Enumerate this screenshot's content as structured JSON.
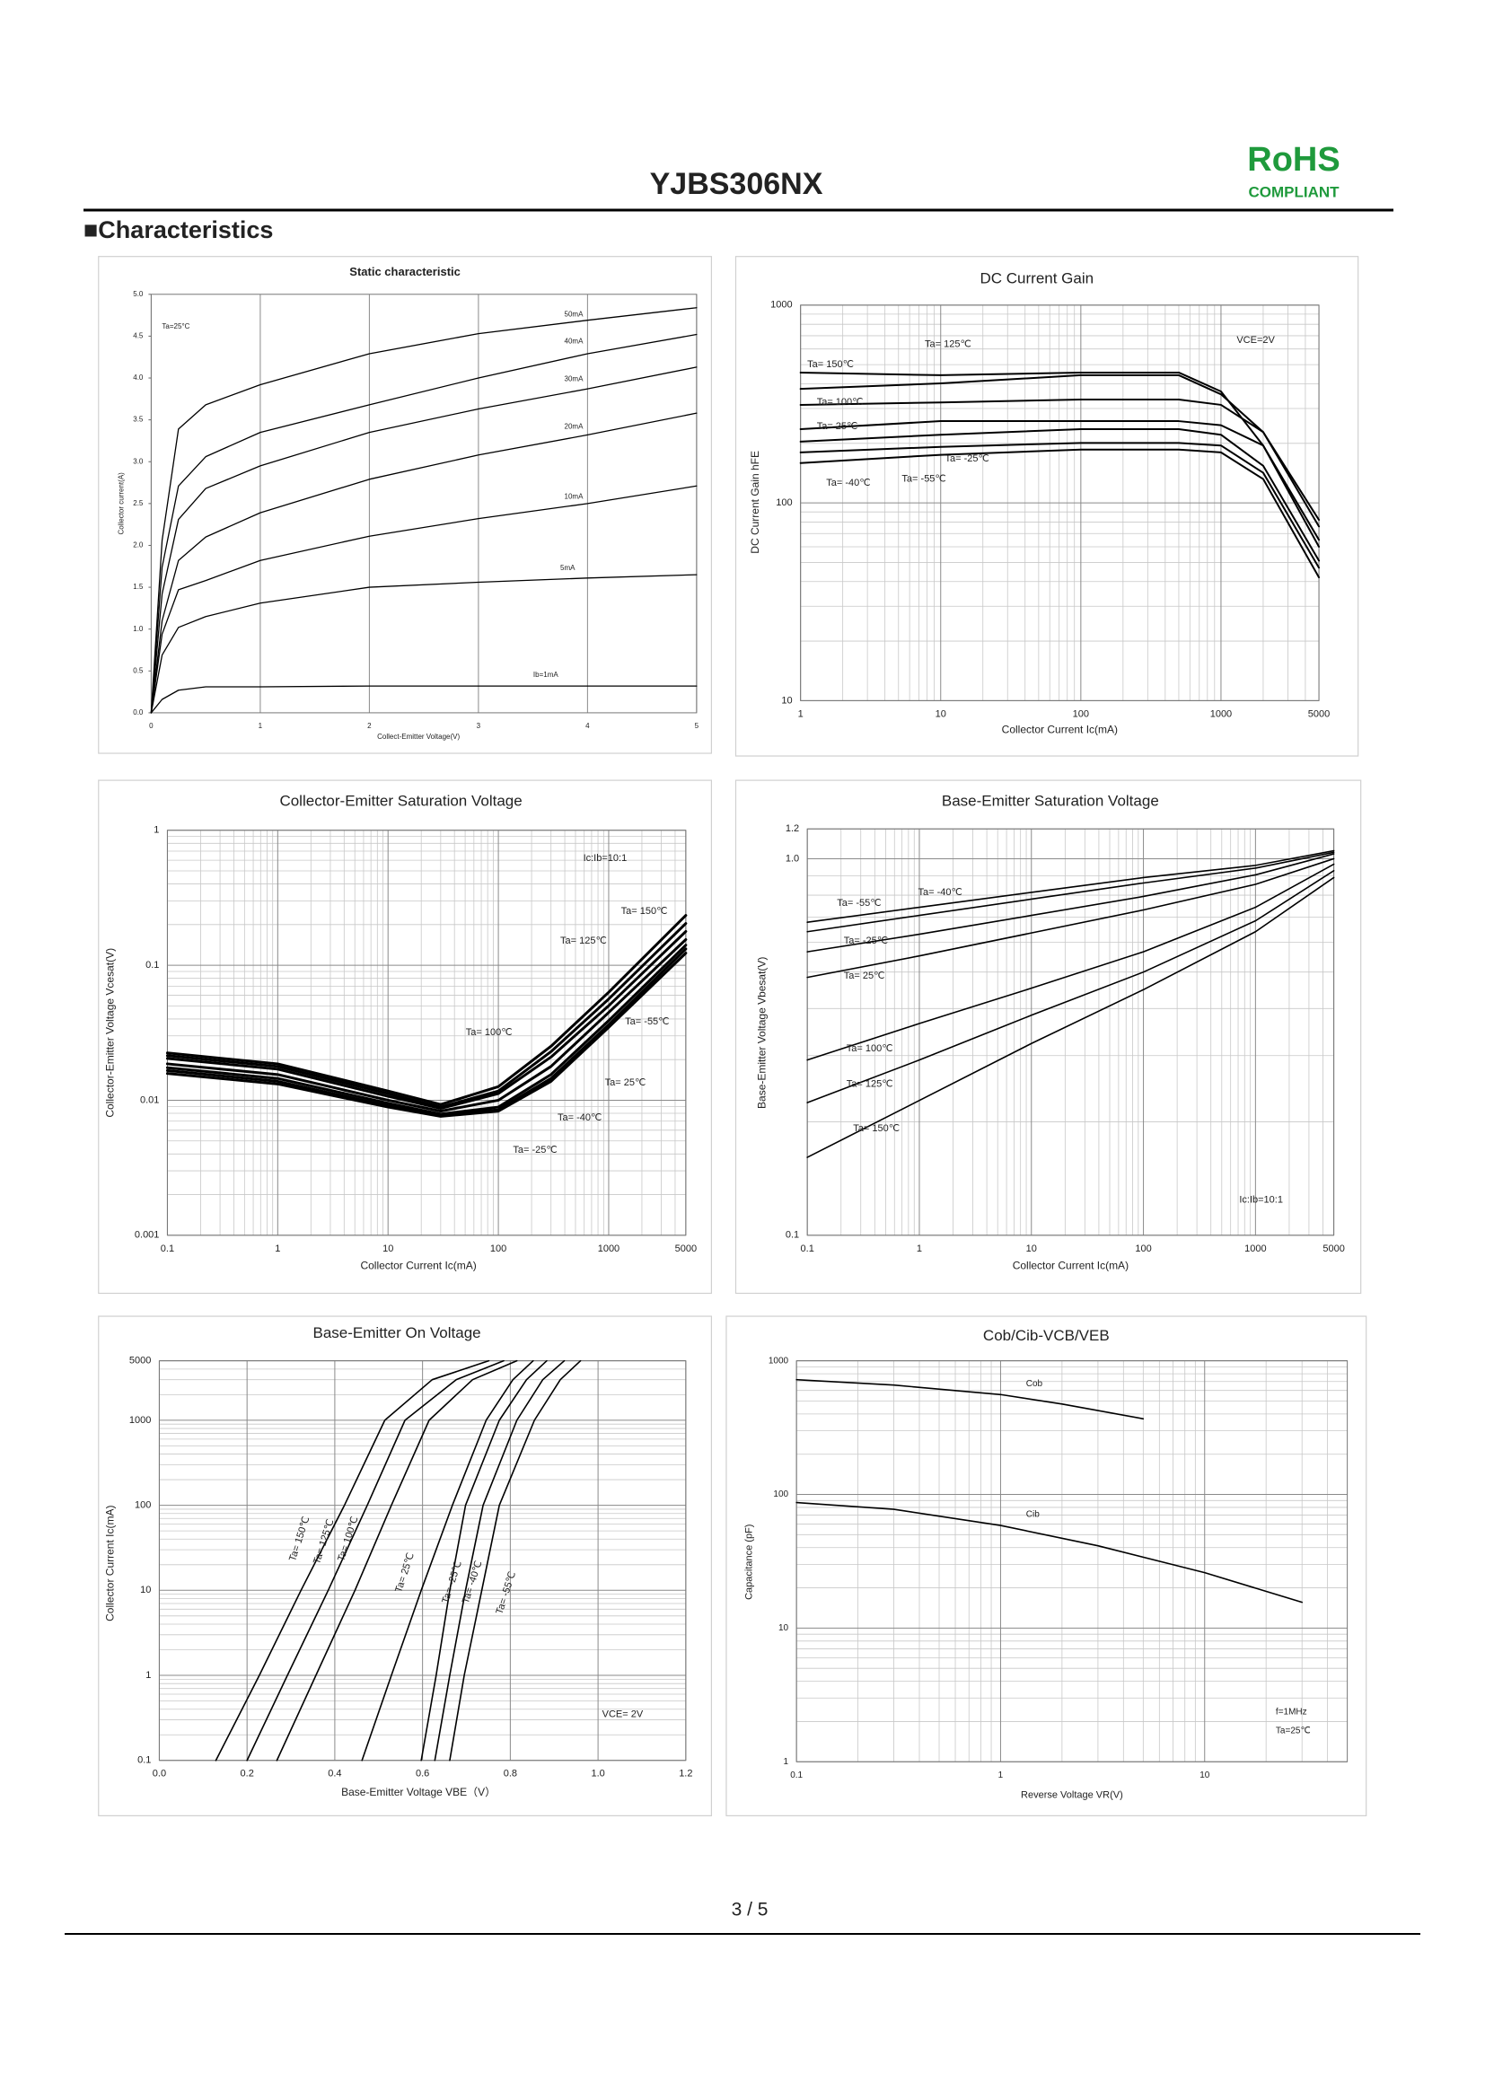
{
  "header": {
    "title": "YJBS306NX",
    "rohs": "RoHS",
    "compliant": "COMPLIANT"
  },
  "section": "■Characteristics",
  "footer": {
    "page": "3 / 5"
  },
  "chart_data": [
    {
      "type": "line",
      "title": "Static characteristic",
      "x_label": "Collect-Emitter Voltage(V)",
      "y_label": "Collector current(A)",
      "annotations": [
        "Ta=25°C"
      ],
      "color": "#000000",
      "xlog": false,
      "ylog": false,
      "grid": "x",
      "xlim": [
        0,
        5
      ],
      "ylim": [
        0,
        5
      ],
      "xticks": [
        0,
        1,
        2,
        3,
        4,
        5
      ],
      "yticks": [
        {
          "value": 0,
          "label": "0.0"
        },
        0.5,
        {
          "value": 1,
          "label": "1.0"
        },
        1.5,
        {
          "value": 2,
          "label": "2.0"
        },
        2.5,
        {
          "value": 3,
          "label": "3.0"
        },
        3.5,
        {
          "value": 4,
          "label": "4.0"
        },
        4.5,
        {
          "value": 5,
          "label": "5.0"
        }
      ],
      "x": [
        0,
        0.1,
        0.25,
        0.5,
        1,
        2,
        3,
        4,
        5
      ],
      "series": [
        {
          "name": "50mA",
          "values": [
            0,
            2.06,
            3.39,
            3.68,
            3.92,
            4.29,
            4.53,
            4.69,
            4.84
          ]
        },
        {
          "name": "40mA",
          "values": [
            0,
            1.74,
            2.71,
            3.06,
            3.35,
            3.68,
            4.0,
            4.29,
            4.52
          ]
        },
        {
          "name": "30mA",
          "values": [
            0,
            1.42,
            2.31,
            2.68,
            2.95,
            3.35,
            3.63,
            3.87,
            4.13
          ]
        },
        {
          "name": "20mA",
          "values": [
            0,
            1.1,
            1.82,
            2.1,
            2.39,
            2.79,
            3.08,
            3.32,
            3.58
          ]
        },
        {
          "name": "10mA",
          "values": [
            0,
            0.94,
            1.47,
            1.58,
            1.82,
            2.11,
            2.32,
            2.5,
            2.71
          ]
        },
        {
          "name": "5mA",
          "values": [
            0,
            0.69,
            1.02,
            1.15,
            1.31,
            1.5,
            1.56,
            1.61,
            1.65
          ]
        },
        {
          "name": "Ib=1mA",
          "values": [
            0,
            0.16,
            0.27,
            0.31,
            0.31,
            0.32,
            0.32,
            0.32,
            0.32
          ]
        }
      ]
    },
    {
      "type": "line",
      "title": "DC Current Gain",
      "x_label": "Collector Current   Ic(mA)",
      "y_label": "DC Current Gain   hFE",
      "annotations": [
        "VCE=2V"
      ],
      "color": "#000000",
      "xlog": true,
      "ylog": true,
      "grid": true,
      "xlim": [
        1,
        5000
      ],
      "ylim": [
        10,
        1000
      ],
      "xticks": [
        1,
        10,
        100,
        1000,
        5000
      ],
      "yticks": [
        10,
        100,
        1000
      ],
      "x": [
        1,
        10,
        100,
        500,
        1000,
        2000,
        5000
      ],
      "series": [
        {
          "name": "Ta= 150℃",
          "values": [
            456,
            442,
            456,
            456,
            366,
            195,
            65
          ]
        },
        {
          "name": "Ta= 125℃",
          "values": [
            377,
            402,
            442,
            442,
            354,
            228,
            76
          ]
        },
        {
          "name": "Ta= 100℃",
          "values": [
            313,
            322,
            333,
            333,
            313,
            228,
            82
          ]
        },
        {
          "name": "Ta= 25℃",
          "values": [
            236,
            259,
            259,
            259,
            247,
            195,
            60
          ]
        },
        {
          "name": "Ta= -25℃",
          "values": [
            204,
            221,
            236,
            236,
            221,
            154,
            51
          ]
        },
        {
          "name": "Ta= -40℃",
          "values": [
            180,
            192,
            201,
            201,
            195,
            142,
            47
          ]
        },
        {
          "name": "Ta= -55℃",
          "values": [
            159,
            175,
            186,
            186,
            180,
            132,
            42
          ]
        }
      ]
    },
    {
      "type": "line",
      "title": "Collector-Emitter Saturation Voltage",
      "x_label": "Collector Current   Ic(mA)",
      "y_label": "Collector-Emitter Voltage   Vcesat(V)",
      "annotations": [
        "Ic:Ib=10:1"
      ],
      "color": "#000000",
      "xlog": true,
      "ylog": true,
      "grid": true,
      "xlim": [
        0.1,
        5000
      ],
      "ylim": [
        0.001,
        1
      ],
      "xticks": [
        0.1,
        1,
        10,
        100,
        1000,
        5000
      ],
      "yticks": [
        0.001,
        0.01,
        0.1,
        1
      ],
      "x": [
        0.1,
        1,
        10,
        30,
        100,
        300,
        1000,
        5000
      ],
      "series": [
        {
          "name": "Ta= 150℃",
          "values": [
            0.0224,
            0.0186,
            0.0117,
            0.0093,
            0.0126,
            0.0251,
            0.0631,
            0.234
          ]
        },
        {
          "name": "Ta= 125℃",
          "values": [
            0.0214,
            0.0178,
            0.0112,
            0.0089,
            0.0117,
            0.0229,
            0.0562,
            0.204
          ]
        },
        {
          "name": "Ta= 100℃",
          "values": [
            0.0204,
            0.017,
            0.0107,
            0.0087,
            0.0112,
            0.0209,
            0.0501,
            0.178
          ]
        },
        {
          "name": "Ta= 25℃",
          "values": [
            0.0186,
            0.0155,
            0.01,
            0.0083,
            0.01,
            0.0178,
            0.0447,
            0.155
          ]
        },
        {
          "name": "Ta= -25℃",
          "values": [
            0.0174,
            0.0145,
            0.0095,
            0.0079,
            0.0089,
            0.0155,
            0.0389,
            0.141
          ]
        },
        {
          "name": "Ta= -40℃",
          "values": [
            0.0166,
            0.0138,
            0.0091,
            0.0078,
            0.0085,
            0.0145,
            0.0363,
            0.132
          ]
        },
        {
          "name": "Ta= -55℃",
          "values": [
            0.0158,
            0.0132,
            0.0089,
            0.0076,
            0.0083,
            0.0138,
            0.0347,
            0.123
          ]
        }
      ]
    },
    {
      "type": "line",
      "title": "Base-Emitter Saturation Voltage",
      "x_label": "Collector Current   Ic(mA)",
      "y_label": "Base-Emitter Voltage   Vbesat(V)",
      "annotations": [
        "Ic:Ib=10:1"
      ],
      "color": "#000000",
      "xlog": true,
      "ylog": true,
      "grid": true,
      "xlim": [
        0.1,
        5000
      ],
      "ylim": [
        0.1,
        1.2
      ],
      "xticks": [
        0.1,
        1,
        10,
        100,
        1000,
        5000
      ],
      "yticks": [
        0.1,
        {
          "value": 1,
          "label": "1.0"
        },
        1.2
      ],
      "x": [
        0.1,
        1,
        10,
        100,
        1000,
        5000
      ],
      "series": [
        {
          "name": "Ta= -55℃",
          "values": [
            0.678,
            0.743,
            0.814,
            0.891,
            0.96,
            1.05
          ]
        },
        {
          "name": "Ta= -40℃",
          "values": [
            0.64,
            0.707,
            0.781,
            0.862,
            0.944,
            1.04
          ]
        },
        {
          "name": "Ta= -25℃",
          "values": [
            0.566,
            0.63,
            0.707,
            0.794,
            0.906,
            1.03
          ]
        },
        {
          "name": "Ta= 25℃",
          "values": [
            0.484,
            0.552,
            0.635,
            0.731,
            0.855,
            1.0
          ]
        },
        {
          "name": "Ta= 100℃",
          "values": [
            0.292,
            0.365,
            0.453,
            0.566,
            0.743,
            0.967
          ]
        },
        {
          "name": "Ta= 125℃",
          "values": [
            0.225,
            0.292,
            0.384,
            0.5,
            0.684,
            0.929
          ]
        },
        {
          "name": "Ta= 150℃",
          "values": [
            0.161,
            0.228,
            0.323,
            0.449,
            0.64,
            0.891
          ]
        }
      ]
    },
    {
      "type": "line",
      "title": "Base-Emitter On Voltage",
      "x_label": "Base-Emitter Voltage   VBE（V）",
      "y_label": "Collector Current   Ic(mA)",
      "annotations": [
        "VCE= 2V"
      ],
      "color": "#000000",
      "xlog": false,
      "ylog": true,
      "grid": true,
      "xlim": [
        0,
        1.2
      ],
      "ylim": [
        0.1,
        5000
      ],
      "xticks": [
        {
          "value": 0,
          "label": "0.0"
        },
        0.2,
        0.4,
        0.6,
        0.8,
        {
          "value": 1,
          "label": "1.0"
        },
        1.2
      ],
      "yticks": [
        0.1,
        1,
        10,
        100,
        1000,
        5000
      ],
      "series": [
        {
          "name": "Ta= 150℃",
          "x": [
            0.129,
            0.228,
            0.323,
            0.422,
            0.514,
            0.622,
            0.751
          ],
          "values": [
            0.1,
            1,
            10,
            100,
            1000,
            3000,
            5000
          ]
        },
        {
          "name": "Ta= 125℃",
          "x": [
            0.2,
            0.292,
            0.385,
            0.474,
            0.56,
            0.677,
            0.785
          ],
          "values": [
            0.1,
            1,
            10,
            100,
            1000,
            3000,
            5000
          ]
        },
        {
          "name": "Ta= 100℃",
          "x": [
            0.268,
            0.357,
            0.446,
            0.529,
            0.615,
            0.714,
            0.815
          ],
          "values": [
            0.1,
            1,
            10,
            100,
            1000,
            3000,
            5000
          ]
        },
        {
          "name": "Ta= 25℃",
          "x": [
            0.462,
            0.529,
            0.597,
            0.668,
            0.745,
            0.806,
            0.852
          ],
          "values": [
            0.1,
            1,
            10,
            100,
            1000,
            3000,
            5000
          ]
        },
        {
          "name": "Ta= -25℃",
          "x": [
            0.597,
            0.631,
            0.662,
            0.698,
            0.775,
            0.837,
            0.883
          ],
          "values": [
            0.1,
            1,
            10,
            100,
            1000,
            3000,
            5000
          ]
        },
        {
          "name": "Ta= -40℃",
          "x": [
            0.628,
            0.662,
            0.698,
            0.738,
            0.815,
            0.874,
            0.923
          ],
          "values": [
            0.1,
            1,
            10,
            100,
            1000,
            3000,
            5000
          ]
        },
        {
          "name": "Ta= -55℃",
          "x": [
            0.662,
            0.695,
            0.735,
            0.775,
            0.855,
            0.914,
            0.96
          ],
          "values": [
            0.1,
            1,
            10,
            100,
            1000,
            3000,
            5000
          ]
        }
      ]
    },
    {
      "type": "line",
      "title": "Cob/Cib-VCB/VEB",
      "x_label": "Reverse Voltage   VR(V)",
      "y_label": "Capacitance (pF)",
      "annotations": [
        "f=1MHz",
        "Ta=25℃"
      ],
      "color": "#000000",
      "xlog": true,
      "ylog": true,
      "grid": true,
      "xlim": [
        0.1,
        50
      ],
      "ylim": [
        1,
        1000
      ],
      "xticks": [
        0.1,
        1,
        10
      ],
      "yticks": [
        1,
        10,
        100,
        1000
      ],
      "series": [
        {
          "name": "Cob",
          "x": [
            0.1,
            0.3,
            1,
            2,
            5
          ],
          "values": [
            722,
            658,
            559,
            475,
            368
          ]
        },
        {
          "name": "Cib",
          "x": [
            0.1,
            0.3,
            1,
            3,
            10,
            30
          ],
          "values": [
            87,
            77.4,
            58.6,
            41.3,
            26,
            15.6
          ]
        }
      ]
    }
  ]
}
